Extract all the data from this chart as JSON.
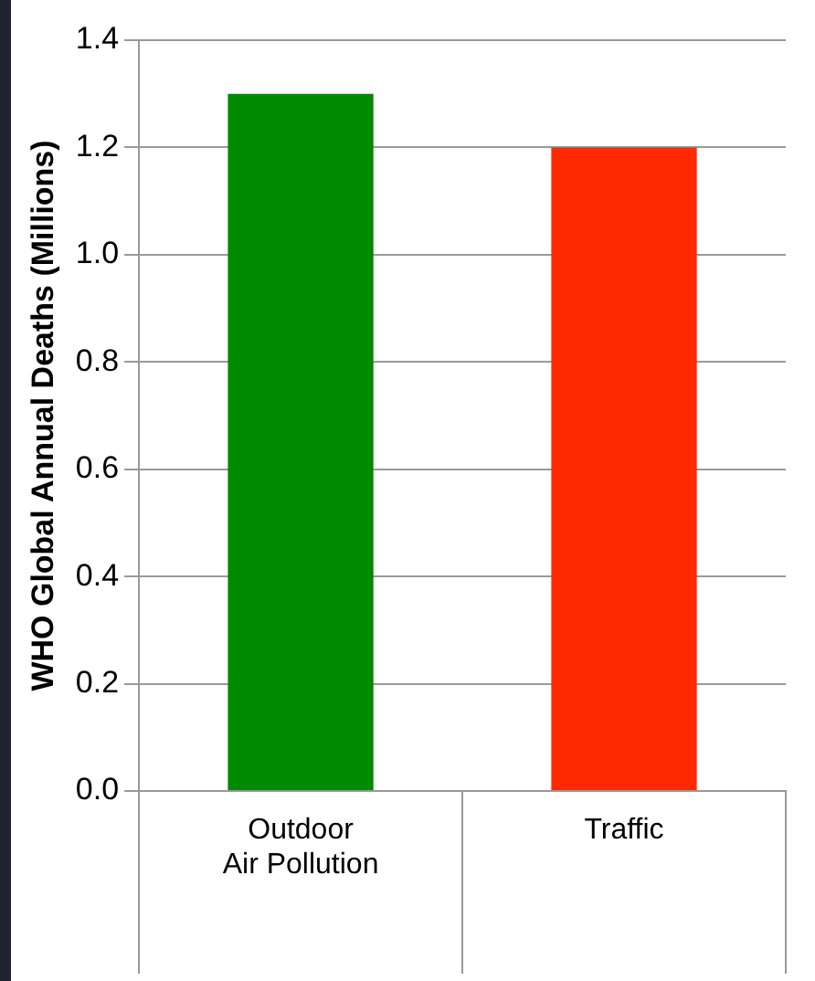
{
  "chart_data": {
    "type": "bar",
    "ylabel": "WHO Global Annual Deaths (Millions)",
    "categories": [
      "Outdoor Air Pollution",
      "Traffic"
    ],
    "values": [
      1.3,
      1.2
    ],
    "colors": [
      "#008a00",
      "#ff2a00"
    ],
    "ylim": [
      0,
      1.4
    ],
    "yticks": [
      {
        "value": 0,
        "label": "0.0"
      },
      {
        "value": 0.2,
        "label": "0.2"
      },
      {
        "value": 0.4,
        "label": "0.4"
      },
      {
        "value": 0.6,
        "label": "0.6"
      },
      {
        "value": 0.8,
        "label": "0.8"
      },
      {
        "value": 1.0,
        "label": "1.0"
      },
      {
        "value": 1.2,
        "label": "1.2"
      },
      {
        "value": 1.4,
        "label": "1.4"
      }
    ],
    "grid": "y"
  }
}
